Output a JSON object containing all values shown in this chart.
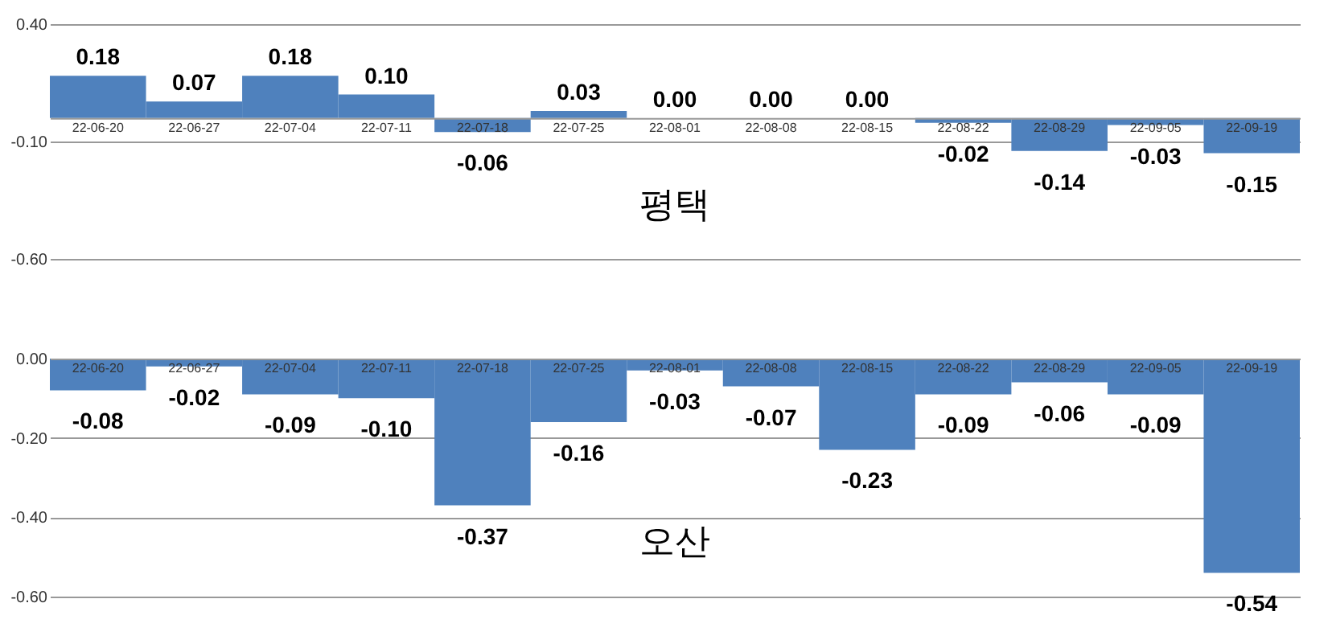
{
  "chart_data": [
    {
      "type": "bar",
      "title": "평택",
      "categories": [
        "22-06-20",
        "22-06-27",
        "22-07-04",
        "22-07-11",
        "22-07-18",
        "22-07-25",
        "22-08-01",
        "22-08-08",
        "22-08-15",
        "22-08-22",
        "22-08-29",
        "22-09-05",
        "22-09-19"
      ],
      "values": [
        0.18,
        0.07,
        0.18,
        0.1,
        -0.06,
        0.03,
        0.0,
        0.0,
        0.0,
        -0.02,
        -0.14,
        -0.03,
        -0.15
      ],
      "color": "#4f81bd",
      "ylim": [
        -0.6,
        0.4
      ],
      "yticks": [
        {
          "value": 0.4,
          "label": "0.40"
        },
        {
          "value": -0.1,
          "label": "-0.10"
        },
        {
          "value": -0.6,
          "label": "-0.60"
        }
      ],
      "grid": true,
      "value_labels": [
        "0.18",
        "0.07",
        "0.18",
        "0.10",
        "-0.06",
        "0.03",
        "0.00",
        "0.00",
        "0.00",
        "-0.02",
        "-0.14",
        "-0.03",
        "-0.15"
      ]
    },
    {
      "type": "bar",
      "title": "오산",
      "categories": [
        "22-06-20",
        "22-06-27",
        "22-07-04",
        "22-07-11",
        "22-07-18",
        "22-07-25",
        "22-08-01",
        "22-08-08",
        "22-08-15",
        "22-08-22",
        "22-08-29",
        "22-09-05",
        "22-09-19"
      ],
      "values": [
        -0.08,
        -0.02,
        -0.09,
        -0.1,
        -0.37,
        -0.16,
        -0.03,
        -0.07,
        -0.23,
        -0.09,
        -0.06,
        -0.09,
        -0.54
      ],
      "color": "#4f81bd",
      "ylim": [
        -0.6,
        0
      ],
      "yticks": [
        {
          "value": 0,
          "label": "0.00"
        },
        {
          "value": -0.2,
          "label": "-0.20"
        },
        {
          "value": -0.4,
          "label": "-0.40"
        },
        {
          "value": -0.6,
          "label": "-0.60"
        }
      ],
      "grid": true,
      "value_labels": [
        "-0.08",
        "-0.02",
        "-0.09",
        "-0.10",
        "-0.37",
        "-0.16",
        "-0.03",
        "-0.07",
        "-0.23",
        "-0.09",
        "-0.06",
        "-0.09",
        "-0.54"
      ]
    }
  ]
}
